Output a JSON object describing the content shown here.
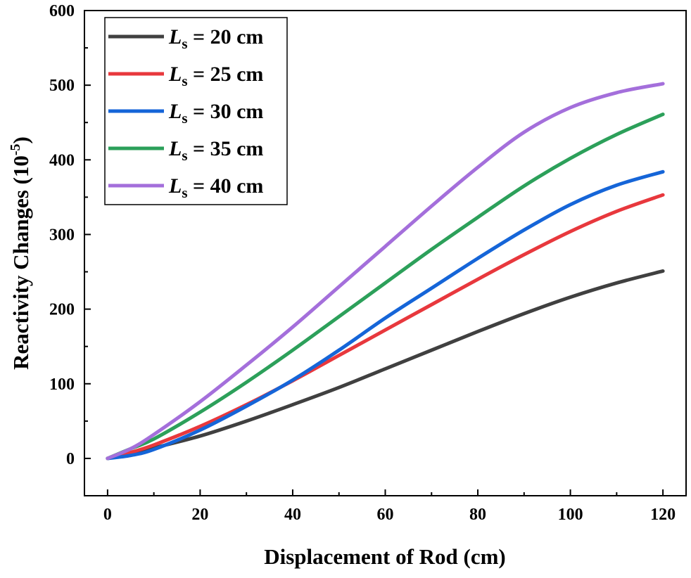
{
  "chart_data": {
    "type": "line",
    "title": "",
    "xlabel": "Displacement of Rod (cm)",
    "ylabel": {
      "main": "Reactivity Changes (10",
      "superscript": "-5",
      "close": ")"
    },
    "xlim": [
      -5,
      125
    ],
    "ylim": [
      -50,
      600
    ],
    "xticks": [
      0,
      20,
      40,
      60,
      80,
      100,
      120
    ],
    "yticks": [
      0,
      100,
      200,
      300,
      400,
      500,
      600
    ],
    "legend_position": "top-left",
    "x": [
      0,
      5,
      10,
      20,
      30,
      40,
      50,
      60,
      70,
      80,
      90,
      100,
      110,
      120
    ],
    "series": [
      {
        "name": "L_s = 20 cm",
        "symbol": "L",
        "subscript": "s",
        "rest": " = 20 cm",
        "color": "#404040",
        "values": [
          0,
          6,
          14,
          30,
          50,
          72,
          95,
          120,
          145,
          170,
          194,
          216,
          235,
          251
        ]
      },
      {
        "name": "L_s = 25 cm",
        "symbol": "L",
        "subscript": "s",
        "rest": " = 25 cm",
        "color": "#e8383d",
        "values": [
          0,
          8,
          18,
          43,
          72,
          104,
          138,
          172,
          206,
          240,
          273,
          304,
          331,
          353
        ]
      },
      {
        "name": "L_s = 30 cm",
        "symbol": "L",
        "subscript": "s",
        "rest": " = 30 cm",
        "color": "#1565d8",
        "values": [
          0,
          4,
          12,
          38,
          70,
          105,
          145,
          188,
          228,
          268,
          306,
          340,
          366,
          384
        ]
      },
      {
        "name": "L_s = 35 cm",
        "symbol": "L",
        "subscript": "s",
        "rest": " = 35 cm",
        "color": "#2ca05a",
        "values": [
          0,
          13,
          26,
          62,
          102,
          145,
          190,
          235,
          280,
          323,
          365,
          402,
          434,
          461
        ]
      },
      {
        "name": "L_s = 40 cm",
        "symbol": "L",
        "subscript": "s",
        "rest": " = 40 cm",
        "color": "#a46fdb",
        "values": [
          0,
          13,
          32,
          76,
          125,
          176,
          230,
          284,
          338,
          390,
          437,
          470,
          490,
          502
        ]
      }
    ]
  }
}
